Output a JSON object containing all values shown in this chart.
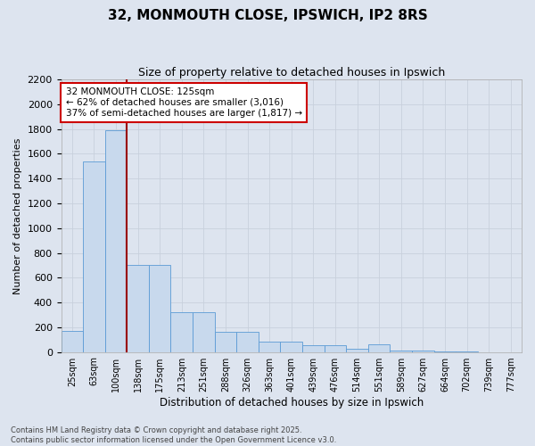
{
  "title1": "32, MONMOUTH CLOSE, IPSWICH, IP2 8RS",
  "title2": "Size of property relative to detached houses in Ipswich",
  "xlabel": "Distribution of detached houses by size in Ipswich",
  "ylabel": "Number of detached properties",
  "categories": [
    "25sqm",
    "63sqm",
    "100sqm",
    "138sqm",
    "175sqm",
    "213sqm",
    "251sqm",
    "288sqm",
    "326sqm",
    "363sqm",
    "401sqm",
    "439sqm",
    "476sqm",
    "514sqm",
    "551sqm",
    "589sqm",
    "627sqm",
    "664sqm",
    "702sqm",
    "739sqm",
    "777sqm"
  ],
  "values": [
    170,
    1540,
    1790,
    700,
    700,
    320,
    320,
    165,
    165,
    80,
    80,
    55,
    55,
    25,
    60,
    10,
    10,
    5,
    5,
    0,
    0
  ],
  "bar_color": "#c8d9ed",
  "bar_edge_color": "#5b9bd5",
  "grid_color": "#c8d0dc",
  "background_color": "#dde4ef",
  "fig_background": "#dde4ef",
  "vline_x": 2.5,
  "vline_color": "#990000",
  "annotation_text": "32 MONMOUTH CLOSE: 125sqm\n← 62% of detached houses are smaller (3,016)\n37% of semi-detached houses are larger (1,817) →",
  "annotation_box_facecolor": "#ffffff",
  "annotation_box_edgecolor": "#cc0000",
  "ylim": [
    0,
    2200
  ],
  "yticks": [
    0,
    200,
    400,
    600,
    800,
    1000,
    1200,
    1400,
    1600,
    1800,
    2000,
    2200
  ],
  "footnote1": "Contains HM Land Registry data © Crown copyright and database right 2025.",
  "footnote2": "Contains public sector information licensed under the Open Government Licence v3.0."
}
